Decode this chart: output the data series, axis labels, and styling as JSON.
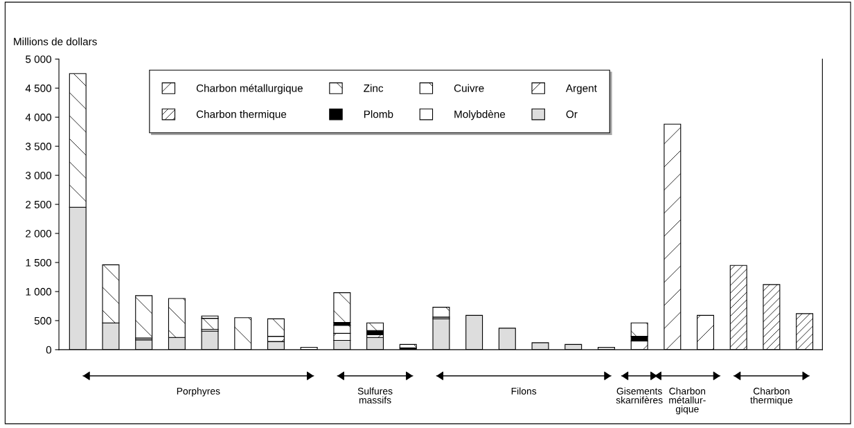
{
  "chart_data": {
    "type": "bar",
    "stacked": true,
    "ylabel": "Millions de dollars",
    "categories": [
      null,
      null,
      null,
      null,
      null,
      null,
      null,
      null,
      null,
      null,
      null,
      null,
      null,
      null,
      null,
      null,
      null,
      null,
      null,
      null,
      null,
      null,
      null
    ],
    "series": [
      {
        "name": "Or",
        "color": "#dddddd",
        "values": [
          2450,
          460,
          170,
          210,
          320,
          null,
          140,
          null,
          160,
          210,
          null,
          530,
          590,
          370,
          120,
          90,
          40,
          null,
          null,
          null,
          null,
          null,
          null
        ]
      },
      {
        "name": "Argent",
        "color": "#000000",
        "values": [
          null,
          null,
          null,
          null,
          null,
          null,
          90,
          40,
          120,
          50,
          null,
          null,
          null,
          null,
          null,
          null,
          null,
          150,
          null,
          null,
          null,
          null,
          null
        ]
      },
      {
        "name": "Molybdène",
        "color": "#ffffff",
        "values": [
          null,
          null,
          30,
          null,
          30,
          null,
          null,
          null,
          null,
          null,
          null,
          30,
          null,
          null,
          null,
          null,
          null,
          null,
          null,
          null,
          null,
          null,
          null
        ]
      },
      {
        "name": "Cuivre",
        "color": "#000000",
        "values": [
          2300,
          1000,
          730,
          670,
          190,
          550,
          300,
          null,
          140,
          null,
          null,
          170,
          null,
          null,
          null,
          null,
          null,
          null,
          null,
          null,
          null,
          null,
          null
        ]
      },
      {
        "name": "Plomb",
        "color": "#000000",
        "values": [
          null,
          null,
          null,
          null,
          null,
          null,
          null,
          null,
          50,
          70,
          30,
          null,
          null,
          null,
          null,
          null,
          null,
          80,
          null,
          null,
          null,
          null,
          null
        ]
      },
      {
        "name": "Zinc",
        "color": "#000000",
        "values": [
          null,
          null,
          null,
          null,
          40,
          null,
          null,
          null,
          510,
          130,
          60,
          null,
          null,
          null,
          null,
          null,
          null,
          230,
          null,
          null,
          null,
          null,
          null
        ]
      },
      {
        "name": "Charbon thermique",
        "color": "#000000",
        "values": [
          null,
          null,
          null,
          null,
          null,
          null,
          null,
          null,
          null,
          null,
          null,
          null,
          null,
          null,
          null,
          null,
          null,
          null,
          null,
          null,
          1450,
          1120,
          620
        ]
      },
      {
        "name": "Charbon métallurgique",
        "color": "#000000",
        "values": [
          null,
          null,
          null,
          null,
          null,
          null,
          null,
          null,
          null,
          null,
          null,
          null,
          null,
          null,
          null,
          null,
          null,
          null,
          3880,
          590,
          null,
          null,
          null
        ]
      }
    ],
    "ylim": [
      0,
      5000
    ],
    "yticks": [
      0,
      500,
      {
        "value": 1000,
        "label": "1 000"
      },
      {
        "value": 1500,
        "label": "1 500"
      },
      {
        "value": 2000,
        "label": "2 000"
      },
      {
        "value": 2500,
        "label": "2 500"
      },
      {
        "value": 3000,
        "label": "3 000"
      },
      {
        "value": 3500,
        "label": "3 500"
      },
      {
        "value": 4000,
        "label": "4 000"
      },
      {
        "value": 4500,
        "label": "4 500"
      },
      {
        "value": 5000,
        "label": "5 000"
      }
    ],
    "tick_labels": "y",
    "grid": false,
    "legend": "top",
    "annotations": [
      "Porphyres",
      "Sulfures\nmassifs",
      "Filons",
      "Gisements\nskarnifères",
      "Charbon\nmétallur-\ngique",
      "Charbon\nthermique"
    ]
  }
}
